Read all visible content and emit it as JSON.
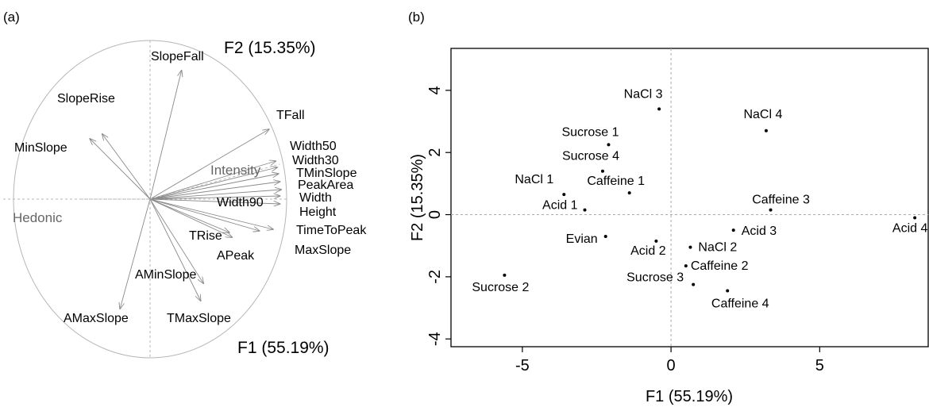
{
  "panels": {
    "a_label": "(a)",
    "b_label": "(b)"
  },
  "chart_data": [
    {
      "type": "scatter",
      "subtype": "correlation-circle",
      "x_axis_label": "F1 (55.19%)",
      "y_axis_label": "F2 (15.35%)",
      "xlim": [
        -1,
        1
      ],
      "ylim": [
        -1,
        1
      ],
      "vectors": [
        {
          "name": "SlopeFall",
          "x": 0.23,
          "y": 0.81
        },
        {
          "name": "SlopeRise",
          "x": -0.35,
          "y": 0.41
        },
        {
          "name": "MinSlope",
          "x": -0.44,
          "y": 0.38
        },
        {
          "name": "TFall",
          "x": 0.87,
          "y": 0.44
        },
        {
          "name": "Width50",
          "x": 0.92,
          "y": 0.24
        },
        {
          "name": "Width30",
          "x": 0.93,
          "y": 0.2
        },
        {
          "name": "TMinSlope",
          "x": 0.94,
          "y": 0.16
        },
        {
          "name": "PeakArea",
          "x": 0.95,
          "y": 0.11
        },
        {
          "name": "Width",
          "x": 0.96,
          "y": 0.06
        },
        {
          "name": "Width90",
          "x": 0.95,
          "y": 0.02
        },
        {
          "name": "Height",
          "x": 0.95,
          "y": -0.03
        },
        {
          "name": "TimeToPeak",
          "x": 0.9,
          "y": -0.19
        },
        {
          "name": "MaxSlope",
          "x": 0.8,
          "y": -0.2
        },
        {
          "name": "TRise",
          "x": 0.58,
          "y": -0.21
        },
        {
          "name": "APeak",
          "x": 0.6,
          "y": -0.24
        },
        {
          "name": "AMinSlope",
          "x": 0.39,
          "y": -0.53
        },
        {
          "name": "AMaxSlope",
          "x": -0.22,
          "y": -0.69
        },
        {
          "name": "TMaxSlope",
          "x": 0.37,
          "y": -0.64
        }
      ],
      "supplementary": [
        {
          "name": "Intensity",
          "x": 0.95,
          "y": 0.22
        },
        {
          "name": "Hedonic",
          "x": -0.5,
          "y": 0.0
        }
      ]
    },
    {
      "type": "scatter",
      "xlabel": "F1 (55.19%)",
      "ylabel": "F2 (15.35%)",
      "xlim": [
        -7.4,
        8.65
      ],
      "ylim": [
        -4.25,
        5.35
      ],
      "xticks": [
        -5,
        0,
        5
      ],
      "yticks": [
        -4,
        -2,
        0,
        2,
        4
      ],
      "xtick_labels": [
        "-5",
        "0",
        "5"
      ],
      "ytick_labels": [
        "-4",
        "-2",
        "0",
        "2",
        "4"
      ],
      "points": [
        {
          "label": "NaCl 3",
          "x": -0.4,
          "y": 3.4
        },
        {
          "label": "NaCl 4",
          "x": 3.2,
          "y": 2.7
        },
        {
          "label": "Sucrose 1",
          "x": -2.1,
          "y": 2.25
        },
        {
          "label": "Sucrose 4",
          "x": -2.3,
          "y": 1.4
        },
        {
          "label": "Caffeine 1",
          "x": -1.4,
          "y": 0.7
        },
        {
          "label": "NaCl 1",
          "x": -3.6,
          "y": 0.65
        },
        {
          "label": "Acid 1",
          "x": -2.9,
          "y": 0.15
        },
        {
          "label": "Caffeine 3",
          "x": 3.35,
          "y": 0.15
        },
        {
          "label": "Acid 4",
          "x": 8.2,
          "y": -0.1
        },
        {
          "label": "Acid 3",
          "x": 2.1,
          "y": -0.5
        },
        {
          "label": "Evian",
          "x": -2.2,
          "y": -0.7
        },
        {
          "label": "Acid 2",
          "x": -0.5,
          "y": -0.85
        },
        {
          "label": "NaCl 2",
          "x": 0.65,
          "y": -1.05
        },
        {
          "label": "Caffeine 2",
          "x": 0.5,
          "y": -1.65
        },
        {
          "label": "Sucrose 2",
          "x": -5.6,
          "y": -1.95
        },
        {
          "label": "Sucrose 3",
          "x": 0.75,
          "y": -2.25
        },
        {
          "label": "Caffeine 4",
          "x": 1.9,
          "y": -2.45
        }
      ]
    }
  ]
}
